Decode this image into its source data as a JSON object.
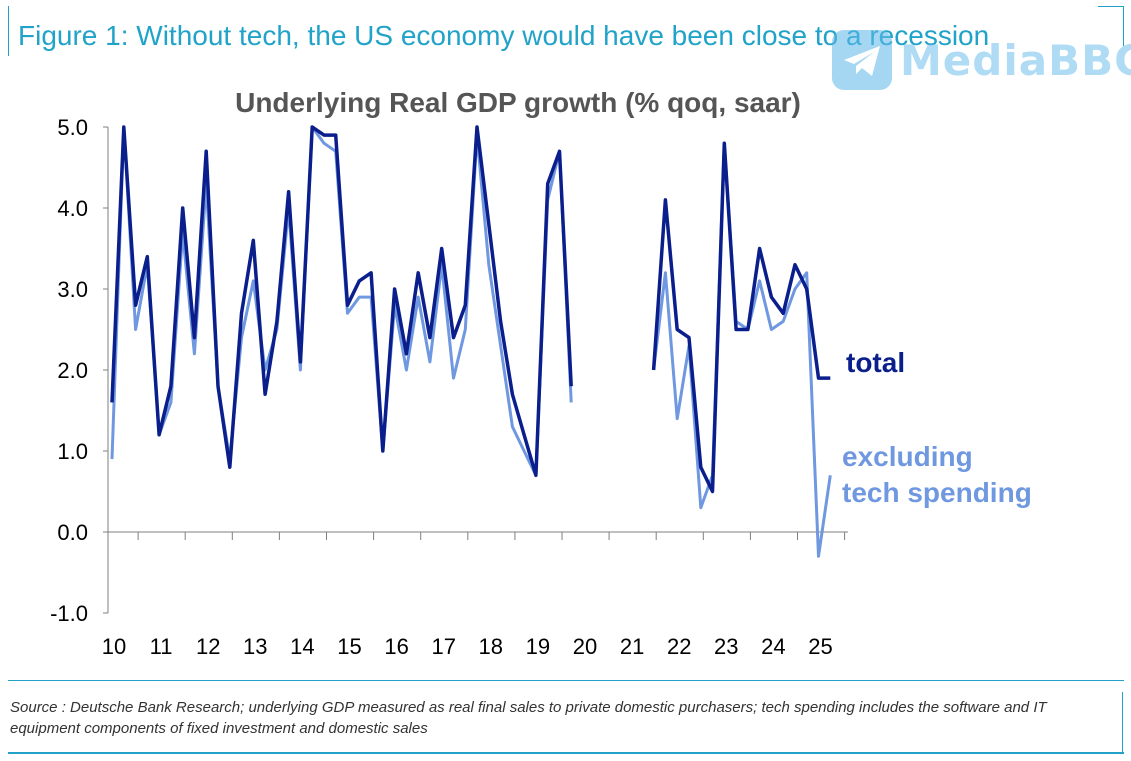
{
  "figure_title": "Figure 1: Without tech, the US economy would have been close to a recession",
  "source_note": "Source : Deutsche Bank Research; underlying GDP measured as real final sales to private domestic purchasers; tech spending includes the software and IT equipment components of fixed investment and domestic sales",
  "watermark": {
    "text": "MediaBBG",
    "icon": "telegram-plane-icon"
  },
  "colors": {
    "total": "#0a1e8c",
    "ex_tech": "#6f98e0",
    "accent": "#21a3c9"
  },
  "chart_data": {
    "type": "line",
    "title": "Underlying Real GDP growth (% qoq, saar)",
    "xlabel": "",
    "ylabel": "",
    "ylim": [
      -1,
      5
    ],
    "yticks": [
      "5.0",
      "4.0",
      "3.0",
      "2.0",
      "1.0",
      "0.0",
      "-1.0"
    ],
    "xlim": [
      2010,
      2025.75
    ],
    "xticks": [
      "10",
      "11",
      "12",
      "13",
      "14",
      "15",
      "16",
      "17",
      "18",
      "19",
      "20",
      "21",
      "22",
      "23",
      "24",
      "25"
    ],
    "grid": false,
    "legend": "inline labels at right",
    "series": [
      {
        "name": "total",
        "x": [
          2010.0,
          2010.25,
          2010.5,
          2010.75,
          2011.0,
          2011.25,
          2011.5,
          2011.75,
          2012.0,
          2012.25,
          2012.5,
          2012.75,
          2013.0,
          2013.25,
          2013.5,
          2013.75,
          2014.0,
          2014.25,
          2014.5,
          2014.75,
          2015.0,
          2015.25,
          2015.5,
          2015.75,
          2016.0,
          2016.25,
          2016.5,
          2016.75,
          2017.0,
          2017.25,
          2017.5,
          2017.75,
          2018.0,
          2018.25,
          2018.5,
          2018.75,
          2019.0,
          2019.25,
          2019.5,
          2019.75,
          null,
          2021.5,
          2021.75,
          2022.0,
          2022.25,
          2022.5,
          2022.75,
          2023.0,
          2023.25,
          2023.5,
          2023.75,
          2024.0,
          2024.25,
          2024.5,
          2024.75,
          2025.0,
          2025.25
        ],
        "values": [
          1.6,
          5.0,
          2.8,
          3.4,
          1.2,
          1.8,
          4.0,
          2.4,
          4.7,
          1.8,
          0.8,
          2.7,
          3.6,
          1.7,
          2.6,
          4.2,
          2.1,
          5.0,
          4.9,
          4.9,
          2.8,
          3.1,
          3.2,
          1.0,
          3.0,
          2.2,
          3.2,
          2.4,
          3.5,
          2.4,
          2.8,
          5.0,
          3.8,
          2.6,
          1.7,
          1.2,
          0.7,
          4.3,
          4.7,
          1.8,
          null,
          2.0,
          4.1,
          2.5,
          2.4,
          0.8,
          0.5,
          4.8,
          2.5,
          2.5,
          3.5,
          2.9,
          2.7,
          3.3,
          3.0,
          1.9,
          1.9
        ]
      },
      {
        "name": "excluding tech spending",
        "x": [
          2010.0,
          2010.25,
          2010.5,
          2010.75,
          2011.0,
          2011.25,
          2011.5,
          2011.75,
          2012.0,
          2012.25,
          2012.5,
          2012.75,
          2013.0,
          2013.25,
          2013.5,
          2013.75,
          2014.0,
          2014.25,
          2014.5,
          2014.75,
          2015.0,
          2015.25,
          2015.5,
          2015.75,
          2016.0,
          2016.25,
          2016.5,
          2016.75,
          2017.0,
          2017.25,
          2017.5,
          2017.75,
          2018.0,
          2018.25,
          2018.5,
          2018.75,
          2019.0,
          2019.25,
          2019.5,
          2019.75,
          null,
          2021.5,
          2021.75,
          2022.0,
          2022.25,
          2022.5,
          2022.75,
          2023.0,
          2023.25,
          2023.5,
          2023.75,
          2024.0,
          2024.25,
          2024.5,
          2024.75,
          2025.0,
          2025.25
        ],
        "values": [
          0.9,
          5.0,
          2.5,
          3.3,
          1.2,
          1.6,
          3.7,
          2.2,
          4.3,
          1.8,
          0.9,
          2.4,
          3.1,
          2.0,
          2.5,
          4.0,
          2.0,
          5.0,
          4.8,
          4.7,
          2.7,
          2.9,
          2.9,
          1.0,
          2.8,
          2.0,
          2.9,
          2.1,
          3.3,
          1.9,
          2.5,
          4.9,
          3.3,
          2.3,
          1.3,
          1.0,
          0.7,
          4.1,
          4.7,
          1.6,
          null,
          2.0,
          3.2,
          1.4,
          2.3,
          0.3,
          0.7,
          4.8,
          2.6,
          2.5,
          3.1,
          2.5,
          2.6,
          3.0,
          3.2,
          -0.3,
          0.7
        ]
      }
    ]
  }
}
